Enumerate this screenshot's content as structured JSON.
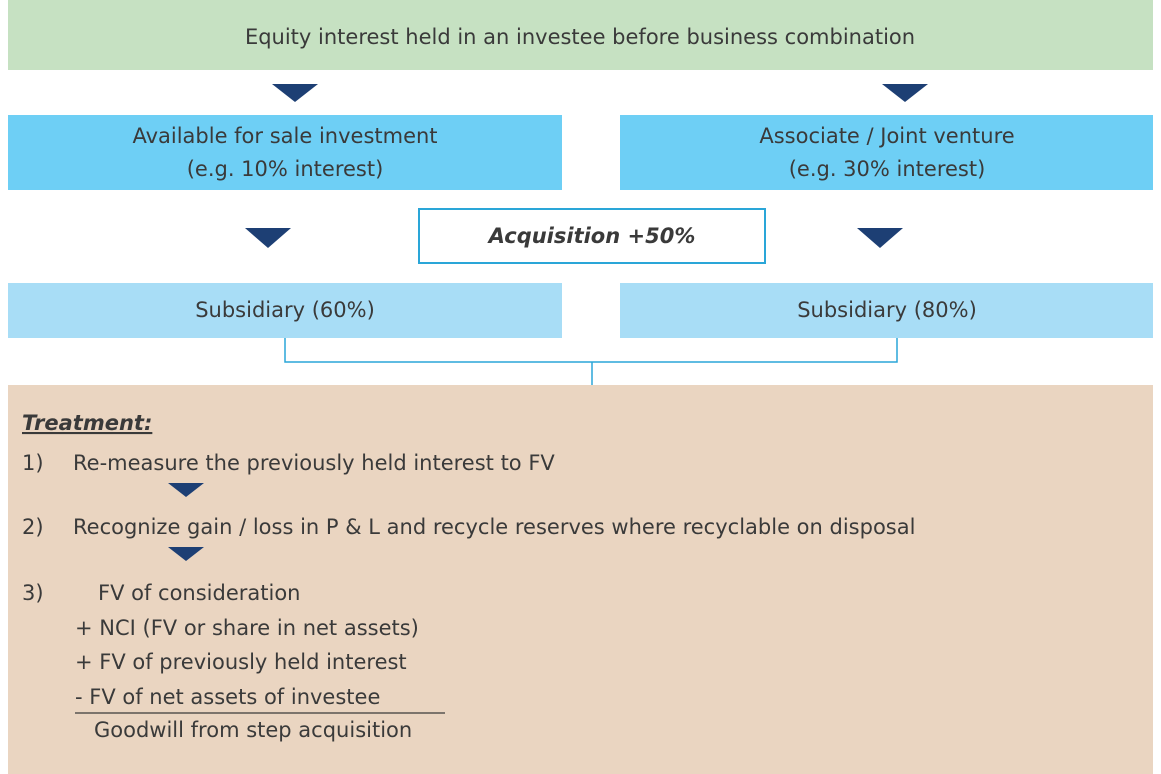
{
  "header": {
    "title": "Equity interest held in an investee before business combination"
  },
  "left_box": {
    "line1": "Available for sale investment",
    "line2": "(e.g. 10% interest)"
  },
  "right_box": {
    "line1": "Associate / Joint venture",
    "line2": "(e.g. 30% interest)"
  },
  "acquisition": "Acquisition +50%",
  "left_result": "Subsidiary (60%)",
  "right_result": "Subsidiary (80%)",
  "treatment": {
    "title": "Treatment:",
    "steps": [
      {
        "number": "1)",
        "text": "Re-measure the previously held interest to FV"
      },
      {
        "number": "2)",
        "text": "Recognize gain / loss in P & L and recycle reserves where recyclable on disposal"
      },
      {
        "number": "3)",
        "text": "FV of consideration"
      }
    ],
    "calculation": [
      "+ NCI (FV or share in net assets)",
      "+ FV of previously held interest",
      "- FV of net assets of investee",
      "Goodwill from step acquisition"
    ]
  }
}
